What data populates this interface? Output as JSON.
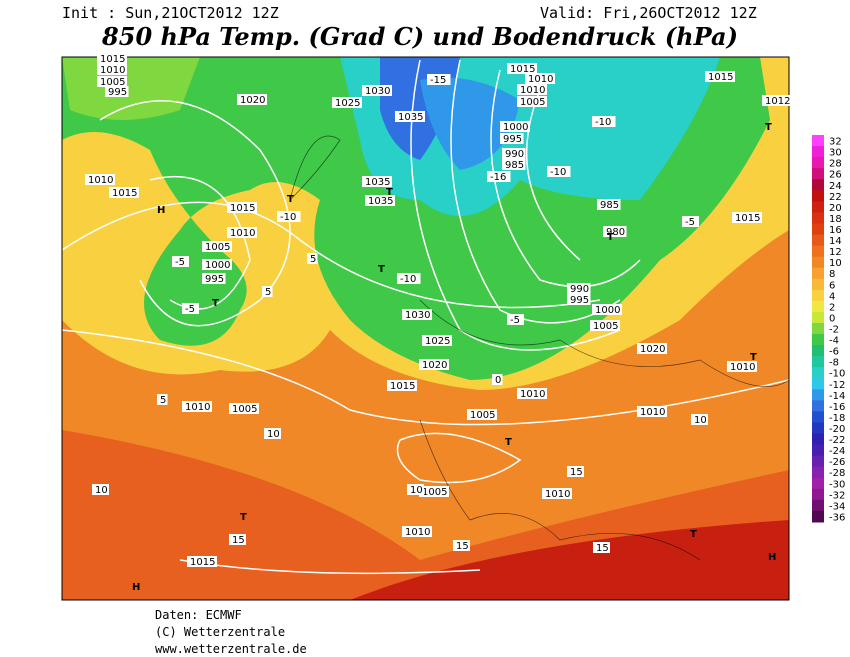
{
  "header": {
    "init": "Init : Sun,21OCT2012 12Z",
    "valid": "Valid: Fri,26OCT2012 12Z",
    "title": "850 hPa Temp. (Grad C) und Bodendruck (hPa)"
  },
  "colorbar": {
    "ticks": [
      32,
      30,
      28,
      26,
      24,
      22,
      20,
      18,
      16,
      14,
      12,
      10,
      8,
      6,
      4,
      2,
      0,
      -2,
      -4,
      -6,
      -8,
      -10,
      -12,
      -14,
      -16,
      -18,
      -20,
      -22,
      -24,
      -26,
      -28,
      -30,
      -32,
      -34,
      -36
    ],
    "colors": [
      "#ff40ff",
      "#f020d8",
      "#e818b0",
      "#d01078",
      "#b00838",
      "#c01010",
      "#d02010",
      "#d83010",
      "#e04010",
      "#e85818",
      "#f07020",
      "#f08828",
      "#f8a030",
      "#f8b838",
      "#f8d040",
      "#f0e840",
      "#c8e838",
      "#80d840",
      "#40c848",
      "#20c070",
      "#20c8a0",
      "#28d0c8",
      "#30c8e8",
      "#3098e8",
      "#3070e0",
      "#2050d0",
      "#2038c0",
      "#3020b0",
      "#4820b0",
      "#6820b0",
      "#8820b0",
      "#a020a8",
      "#901890",
      "#701070",
      "#500850"
    ]
  },
  "map_labels": [
    "1015",
    "1010",
    "1005",
    "995",
    "1020",
    "1025",
    "1030",
    "1035",
    "1035",
    "1035",
    "1015",
    "1010",
    "1005",
    "1000",
    "995",
    "1010",
    "1015",
    "1030",
    "1025",
    "1020",
    "1015",
    "1010",
    "1010",
    "1005",
    "1005",
    "1010",
    "1010",
    "1015",
    "1015",
    "1010",
    "1010",
    "1005",
    "1000",
    "995",
    "990",
    "985",
    "990",
    "995",
    "1000",
    "1005",
    "1010",
    "1015",
    "1020",
    "1015",
    "1005",
    "985",
    "980",
    "1012",
    "1010",
    "-15",
    "-10",
    "-10",
    "-10",
    "-16",
    "-10",
    "-5",
    "-5",
    "-5",
    "-5",
    "5",
    "5",
    "5",
    "0",
    "10",
    "10",
    "10",
    "10",
    "15",
    "15",
    "15",
    "15",
    "H",
    "H",
    "H",
    "T",
    "T",
    "T",
    "T",
    "T",
    "T",
    "T",
    "T",
    "T",
    "T"
  ],
  "footer": {
    "source": "Daten: ECMWF",
    "copyright": "(C) Wetterzentrale",
    "url": "www.wetterzentrale.de"
  }
}
